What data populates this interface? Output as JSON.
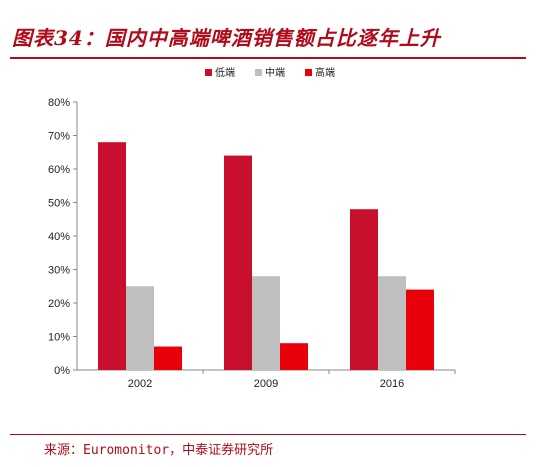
{
  "title": "图表34：国内中高端啤酒销售额占比逐年上升",
  "source": "来源：Euromonitor，中泰证券研究所",
  "chart_data": {
    "type": "bar",
    "categories": [
      "2002",
      "2009",
      "2016"
    ],
    "series": [
      {
        "name": "低端",
        "values": [
          68,
          64,
          48
        ],
        "color": "#c8102e"
      },
      {
        "name": "中端",
        "values": [
          25,
          28,
          28
        ],
        "color": "#bfbfbf"
      },
      {
        "name": "高端",
        "values": [
          7,
          8,
          24
        ],
        "color": "#e8000b"
      }
    ],
    "ylim": [
      0,
      80
    ],
    "yticks": [
      "0%",
      "10%",
      "20%",
      "30%",
      "40%",
      "50%",
      "60%",
      "70%",
      "80%"
    ],
    "legend": "top-center",
    "grid": false
  }
}
